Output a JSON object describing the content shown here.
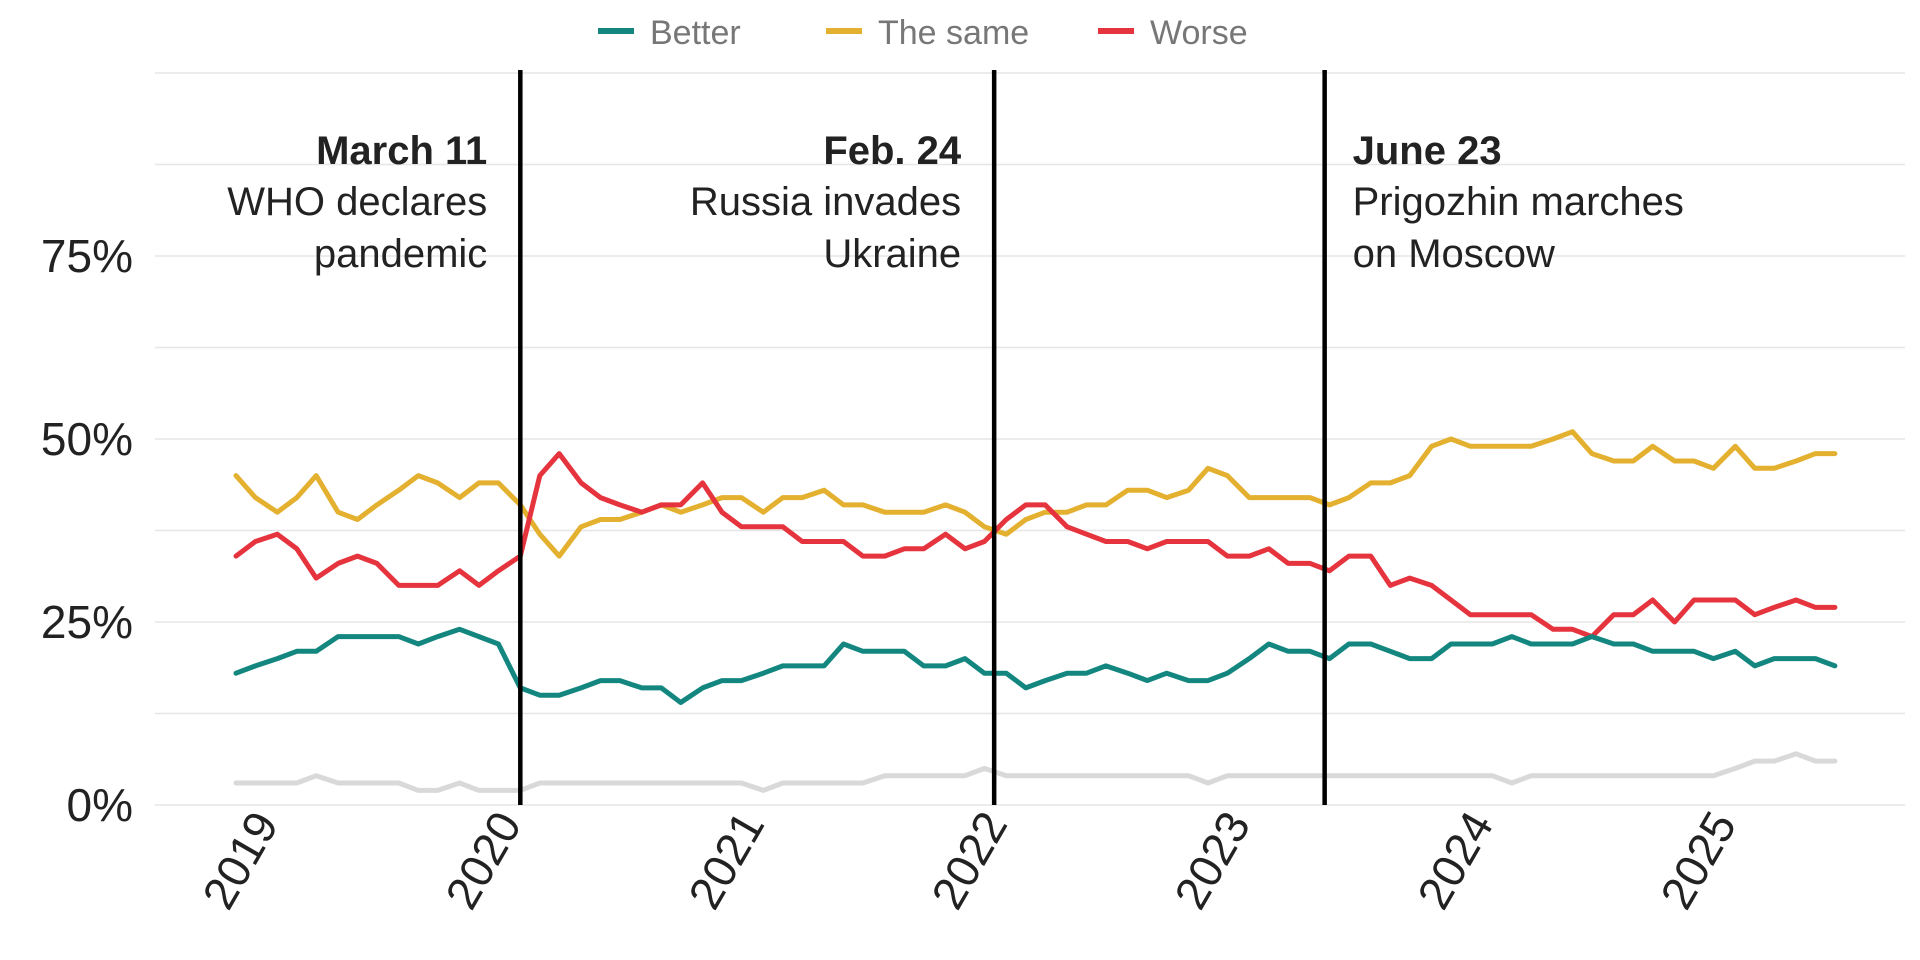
{
  "chart_data": {
    "type": "line",
    "title": "",
    "xlabel": "",
    "ylabel": "",
    "ylim": [
      0,
      100
    ],
    "y_ticks": [
      0,
      25,
      50,
      75
    ],
    "y_tick_labels": [
      "0%",
      "25%",
      "50%",
      "75%"
    ],
    "x_ticks": [
      2019,
      2020,
      2021,
      2022,
      2023,
      2024,
      2025
    ],
    "x_tick_labels": [
      "2019",
      "2020",
      "2021",
      "2022",
      "2023",
      "2024",
      "2025"
    ],
    "grid": true,
    "legend_position": "top-center",
    "x": [
      2019.0,
      2019.08,
      2019.17,
      2019.25,
      2019.33,
      2019.42,
      2019.5,
      2019.58,
      2019.67,
      2019.75,
      2019.83,
      2019.92,
      2020.0,
      2020.08,
      2020.17,
      2020.25,
      2020.33,
      2020.42,
      2020.5,
      2020.58,
      2020.67,
      2020.75,
      2020.83,
      2020.92,
      2021.0,
      2021.08,
      2021.17,
      2021.25,
      2021.33,
      2021.42,
      2021.5,
      2021.58,
      2021.67,
      2021.75,
      2021.83,
      2021.92,
      2022.0,
      2022.08,
      2022.17,
      2022.25,
      2022.33,
      2022.42,
      2022.5,
      2022.58,
      2022.67,
      2022.75,
      2022.83,
      2022.92,
      2023.0,
      2023.08,
      2023.17,
      2023.25,
      2023.33,
      2023.42,
      2023.5,
      2023.58,
      2023.67,
      2023.75,
      2023.83,
      2023.92,
      2024.0,
      2024.08,
      2024.17,
      2024.25,
      2024.33,
      2024.42,
      2024.5,
      2024.58,
      2024.67,
      2024.75,
      2024.83,
      2024.92,
      2025.0,
      2025.08,
      2025.17,
      2025.25,
      2025.33,
      2025.42,
      2025.5,
      2025.58
    ],
    "series": [
      {
        "name": "Better",
        "color": "#13877f",
        "values": [
          18,
          19,
          20,
          21,
          21,
          23,
          23,
          23,
          23,
          22,
          23,
          24,
          23,
          22,
          16,
          15,
          15,
          16,
          17,
          17,
          16,
          16,
          14,
          16,
          17,
          17,
          18,
          19,
          19,
          19,
          22,
          21,
          21,
          21,
          19,
          19,
          20,
          18,
          18,
          16,
          17,
          18,
          18,
          19,
          18,
          17,
          18,
          17,
          17,
          18,
          20,
          22,
          21,
          21,
          20,
          22,
          22,
          21,
          20,
          20,
          22,
          22,
          22,
          23,
          22,
          22,
          22,
          23,
          22,
          22,
          21,
          21,
          21,
          20,
          21,
          19,
          20,
          20,
          20,
          19
        ]
      },
      {
        "name": "The same",
        "color": "#e4b02f",
        "values": [
          45,
          42,
          40,
          42,
          45,
          40,
          39,
          41,
          43,
          45,
          44,
          42,
          44,
          44,
          41,
          37,
          34,
          38,
          39,
          39,
          40,
          41,
          40,
          41,
          42,
          42,
          40,
          42,
          42,
          43,
          41,
          41,
          40,
          40,
          40,
          41,
          40,
          38,
          37,
          39,
          40,
          40,
          41,
          41,
          43,
          43,
          42,
          43,
          46,
          45,
          42,
          42,
          42,
          42,
          41,
          42,
          44,
          44,
          45,
          49,
          50,
          49,
          49,
          49,
          49,
          50,
          51,
          48,
          47,
          47,
          49,
          47,
          47,
          46,
          49,
          46,
          46,
          47,
          48,
          48
        ]
      },
      {
        "name": "Worse",
        "color": "#e5343d",
        "values": [
          34,
          36,
          37,
          35,
          31,
          33,
          34,
          33,
          30,
          30,
          30,
          32,
          30,
          32,
          34,
          45,
          48,
          44,
          42,
          41,
          40,
          41,
          41,
          44,
          40,
          38,
          38,
          38,
          36,
          36,
          36,
          34,
          34,
          35,
          35,
          37,
          35,
          36,
          39,
          41,
          41,
          38,
          37,
          36,
          36,
          35,
          36,
          36,
          36,
          34,
          34,
          35,
          33,
          33,
          32,
          34,
          34,
          30,
          31,
          30,
          28,
          26,
          26,
          26,
          26,
          24,
          24,
          23,
          26,
          26,
          28,
          25,
          28,
          28,
          28,
          26,
          27,
          28,
          27,
          27
        ]
      },
      {
        "name": "",
        "color": "#d9d9d9",
        "values": [
          3,
          3,
          3,
          3,
          4,
          3,
          3,
          3,
          3,
          2,
          2,
          3,
          2,
          2,
          2,
          3,
          3,
          3,
          3,
          3,
          3,
          3,
          3,
          3,
          3,
          3,
          2,
          3,
          3,
          3,
          3,
          3,
          4,
          4,
          4,
          4,
          4,
          5,
          4,
          4,
          4,
          4,
          4,
          4,
          4,
          4,
          4,
          4,
          3,
          4,
          4,
          4,
          4,
          4,
          4,
          4,
          4,
          4,
          4,
          4,
          4,
          4,
          4,
          3,
          4,
          4,
          4,
          4,
          4,
          4,
          4,
          4,
          4,
          4,
          5,
          6,
          6,
          7,
          6,
          6
        ]
      }
    ],
    "annotations": [
      {
        "x": 2020.17,
        "title": "March 11",
        "lines": [
          "WHO declares",
          "pandemic"
        ],
        "align": "left"
      },
      {
        "x": 2022.12,
        "title": "Feb. 24",
        "lines": [
          "Russia invades",
          "Ukraine"
        ],
        "align": "left"
      },
      {
        "x": 2023.48,
        "title": "June 23",
        "lines": [
          "Prigozhin marches",
          "on Moscow"
        ],
        "align": "right"
      }
    ]
  }
}
